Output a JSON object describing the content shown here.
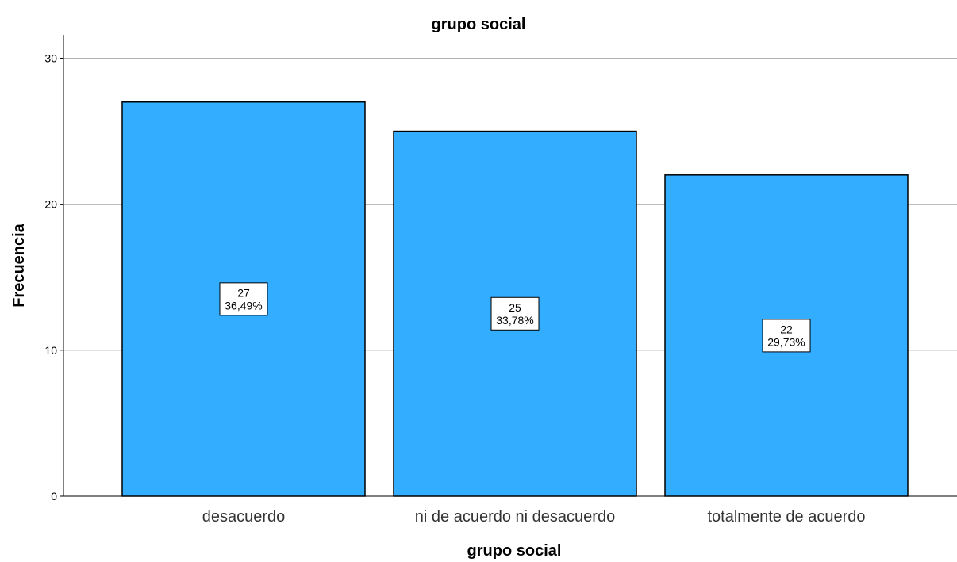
{
  "chart_data": {
    "type": "bar",
    "title": "grupo social",
    "xlabel": "grupo social",
    "ylabel": "Frecuencia",
    "categories": [
      "desacuerdo",
      "ni de acuerdo ni desacuerdo",
      "totalmente de acuerdo"
    ],
    "values": [
      27,
      25,
      22
    ],
    "percent_labels": [
      "36,49%",
      "33,78%",
      "29,73%"
    ],
    "ylim": [
      0,
      31.6
    ],
    "yticks": [
      0,
      10,
      20,
      30
    ],
    "grid": true,
    "bar_color": "#33adff"
  }
}
